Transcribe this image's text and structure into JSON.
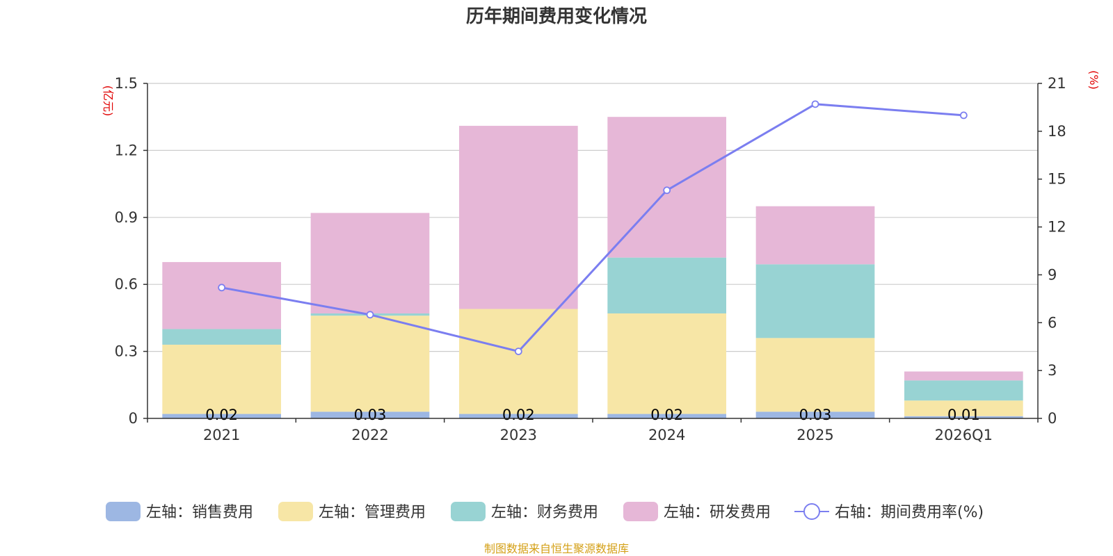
{
  "chart_data": {
    "type": "bar",
    "title": "历年期间费用变化情况",
    "categories": [
      "2021",
      "2022",
      "2023",
      "2024",
      "2025",
      "2026Q1"
    ],
    "left_axis": {
      "unit": "(亿元)",
      "ylim": [
        0,
        1.5
      ],
      "ticks": [
        "0",
        "0.3",
        "0.6",
        "0.9",
        "1.2",
        "1.5"
      ],
      "tick_values": [
        0,
        0.3,
        0.6,
        0.9,
        1.2,
        1.5
      ]
    },
    "right_axis": {
      "unit": "(%)",
      "ylim": [
        0,
        21
      ],
      "ticks": [
        "0",
        "3",
        "6",
        "9",
        "12",
        "15",
        "18",
        "21"
      ],
      "tick_values": [
        0,
        3,
        6,
        9,
        12,
        15,
        18,
        21
      ]
    },
    "grid": true,
    "stacked": true,
    "series": [
      {
        "name": "左轴：销售费用",
        "axis": "left",
        "kind": "bar",
        "color": "#9db7e3",
        "values": [
          0.02,
          0.03,
          0.02,
          0.02,
          0.03,
          0.01
        ],
        "labels": [
          "0.02",
          "0.03",
          "0.02",
          "0.02",
          "0.03",
          "0.01"
        ]
      },
      {
        "name": "左轴：管理费用",
        "axis": "left",
        "kind": "bar",
        "color": "#f7e6a6",
        "values": [
          0.31,
          0.43,
          0.47,
          0.45,
          0.33,
          0.07
        ]
      },
      {
        "name": "左轴：财务费用",
        "axis": "left",
        "kind": "bar",
        "color": "#98d3d3",
        "values": [
          0.07,
          0.01,
          0.0,
          0.25,
          0.33,
          0.09
        ]
      },
      {
        "name": "左轴：研发费用",
        "axis": "left",
        "kind": "bar",
        "color": "#e6b7d7",
        "values": [
          0.3,
          0.45,
          0.82,
          0.63,
          0.26,
          0.04
        ]
      },
      {
        "name": "右轴：期间费用率(%)",
        "axis": "right",
        "kind": "line",
        "color": "#7b7ef0",
        "values": [
          8.2,
          6.5,
          4.2,
          14.3,
          19.7,
          19.0
        ]
      }
    ],
    "legend_position": "bottom"
  },
  "source_note": "制图数据来自恒生聚源数据库"
}
